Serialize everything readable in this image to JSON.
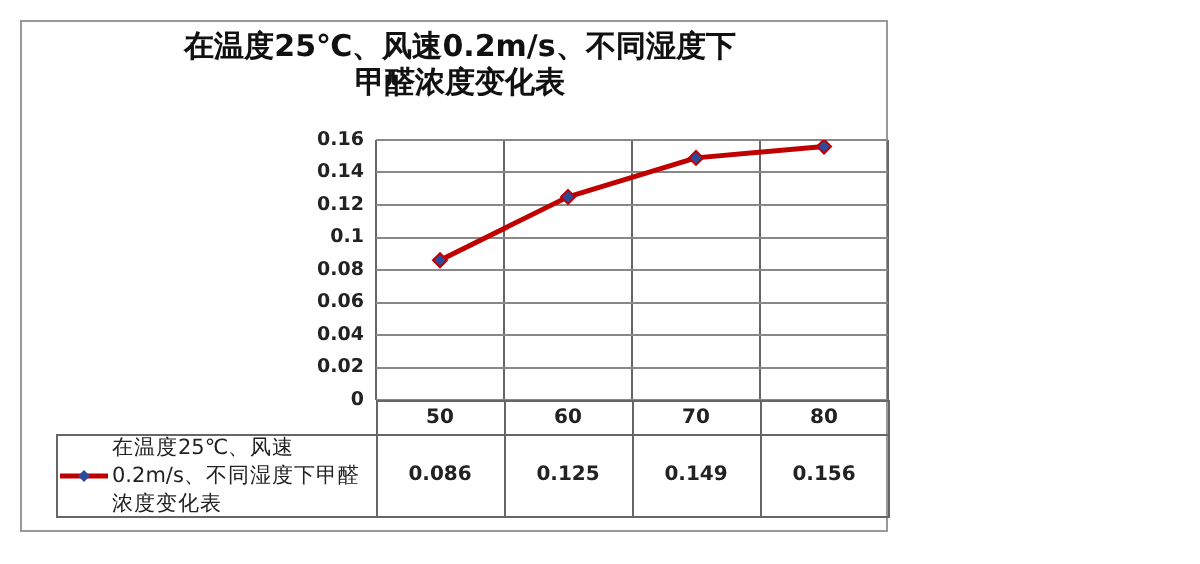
{
  "chart_data": {
    "type": "line",
    "title": "在温度25℃、风速0.2m/s、不同湿度下甲醛浓度变化表",
    "categories": [
      "50",
      "60",
      "70",
      "80"
    ],
    "series": [
      {
        "name": "在温度25℃、风速0.2m/s、不同湿度下甲醛浓度变化表",
        "color": "#c00000",
        "values": [
          0.086,
          0.125,
          0.149,
          0.156
        ]
      }
    ],
    "ylim": [
      0,
      0.16
    ],
    "yticks": [
      0,
      0.02,
      0.04,
      0.06,
      0.08,
      0.1,
      0.12,
      0.14,
      0.16
    ],
    "grid": true,
    "legend": "bottom left",
    "marker": "diamond",
    "line_style": "solid",
    "data_labels": true
  }
}
